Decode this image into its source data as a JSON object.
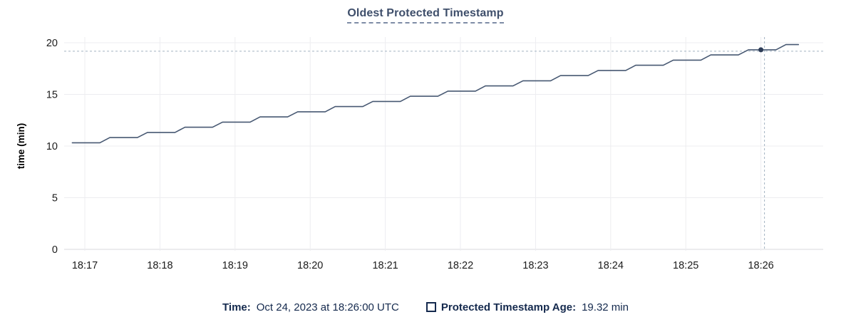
{
  "title": "Oldest Protected Timestamp",
  "colors": {
    "line": "#475872",
    "dot": "#2d3c57",
    "grid": "#ededf0",
    "grid_zero": "#d9d9de",
    "crosshair": "#a3b3c2",
    "tick_label": "#1c1c1c",
    "axis_title": "#000000",
    "title_text": "#3f4f6b",
    "footer_text": "#152a4e"
  },
  "chart_data": {
    "type": "line",
    "title": "Oldest Protected Timestamp",
    "xlabel": "",
    "ylabel": "time (min)",
    "ylim": [
      0,
      20
    ],
    "y_ticks": [
      0,
      5,
      10,
      15,
      20
    ],
    "x_ticks": [
      "18:17",
      "18:18",
      "18:19",
      "18:20",
      "18:21",
      "18:22",
      "18:23",
      "18:24",
      "18:25",
      "18:26"
    ],
    "x_unit": "seconds after 18:17:00",
    "grid": true,
    "legend_position": "bottom",
    "series": [
      {
        "name": "Protected Timestamp Age",
        "unit": "min",
        "points": [
          [
            -10,
            10.32
          ],
          [
            12,
            10.32
          ],
          [
            20,
            10.82
          ],
          [
            42,
            10.82
          ],
          [
            50,
            11.32
          ],
          [
            72,
            11.32
          ],
          [
            80,
            11.82
          ],
          [
            102,
            11.82
          ],
          [
            110,
            12.32
          ],
          [
            132,
            12.32
          ],
          [
            140,
            12.82
          ],
          [
            162,
            12.82
          ],
          [
            170,
            13.32
          ],
          [
            192,
            13.32
          ],
          [
            200,
            13.82
          ],
          [
            222,
            13.82
          ],
          [
            230,
            14.32
          ],
          [
            252,
            14.32
          ],
          [
            260,
            14.82
          ],
          [
            282,
            14.82
          ],
          [
            290,
            15.32
          ],
          [
            312,
            15.32
          ],
          [
            320,
            15.82
          ],
          [
            342,
            15.82
          ],
          [
            350,
            16.32
          ],
          [
            372,
            16.32
          ],
          [
            380,
            16.82
          ],
          [
            402,
            16.82
          ],
          [
            410,
            17.32
          ],
          [
            432,
            17.32
          ],
          [
            440,
            17.82
          ],
          [
            462,
            17.82
          ],
          [
            470,
            18.32
          ],
          [
            492,
            18.32
          ],
          [
            500,
            18.82
          ],
          [
            522,
            18.82
          ],
          [
            530,
            19.32
          ],
          [
            552,
            19.32
          ],
          [
            560,
            19.82
          ],
          [
            570,
            19.82
          ]
        ]
      }
    ],
    "crosshair": {
      "x_label": "18:26:00",
      "x_seconds": 540,
      "value": 19.32
    }
  },
  "footer": {
    "time_label": "Time:",
    "time_value": "Oct 24, 2023 at 18:26:00 UTC",
    "legend_label": "Protected Timestamp Age:",
    "legend_value": "19.32 min"
  }
}
